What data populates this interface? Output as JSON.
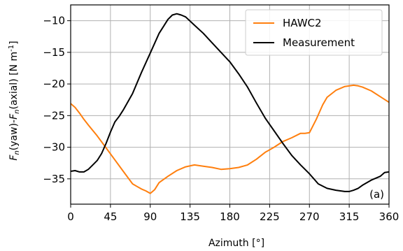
{
  "chart_data": {
    "type": "line",
    "xlabel": "Azimuth [°]",
    "ylabel": "Fn(yaw)-Fn(axial) [N m-1]",
    "xlim": [
      0,
      360
    ],
    "ylim": [
      -39,
      -7.5
    ],
    "xticks": [
      0,
      45,
      90,
      135,
      180,
      225,
      270,
      315,
      360
    ],
    "yticks": [
      -35,
      -30,
      -25,
      -20,
      -15,
      -10
    ],
    "grid": true,
    "legend_position": "top-right",
    "annotation": "(a)",
    "series": [
      {
        "name": "HAWC2",
        "color": "#ff7f0e",
        "x": [
          0,
          5,
          10,
          15,
          20,
          30,
          40,
          50,
          60,
          70,
          75,
          80,
          85,
          90,
          95,
          100,
          110,
          120,
          130,
          140,
          150,
          160,
          170,
          180,
          190,
          200,
          210,
          220,
          230,
          240,
          250,
          260,
          265,
          270,
          278,
          285,
          290,
          300,
          310,
          320,
          325,
          330,
          340,
          350,
          360
        ],
        "y": [
          -23.1,
          -23.7,
          -24.6,
          -25.6,
          -26.5,
          -28.2,
          -30.1,
          -32.0,
          -33.9,
          -35.8,
          -36.2,
          -36.6,
          -36.9,
          -37.3,
          -36.7,
          -35.6,
          -34.6,
          -33.7,
          -33.1,
          -32.8,
          -33.0,
          -33.2,
          -33.5,
          -33.4,
          -33.2,
          -32.8,
          -31.9,
          -30.8,
          -30.0,
          -29.1,
          -28.5,
          -27.8,
          -27.8,
          -27.7,
          -25.5,
          -23.3,
          -22.1,
          -21.0,
          -20.4,
          -20.2,
          -20.3,
          -20.5,
          -21.1,
          -22.0,
          -22.9
        ]
      },
      {
        "name": "Measurement",
        "color": "#000000",
        "x": [
          0,
          5,
          10,
          15,
          20,
          25,
          30,
          35,
          40,
          45,
          50,
          55,
          60,
          70,
          80,
          90,
          100,
          105,
          110,
          115,
          120,
          125,
          130,
          140,
          150,
          160,
          170,
          180,
          190,
          200,
          210,
          220,
          230,
          240,
          250,
          260,
          270,
          280,
          290,
          300,
          310,
          315,
          320,
          325,
          330,
          340,
          350,
          355,
          360
        ],
        "y": [
          -33.8,
          -33.7,
          -33.9,
          -33.9,
          -33.5,
          -32.8,
          -32.1,
          -31.0,
          -29.4,
          -27.6,
          -26.0,
          -25.1,
          -24.0,
          -21.5,
          -18.2,
          -15.1,
          -12.0,
          -10.9,
          -9.8,
          -9.1,
          -8.9,
          -9.1,
          -9.4,
          -10.7,
          -12.0,
          -13.5,
          -15.0,
          -16.5,
          -18.4,
          -20.5,
          -23.0,
          -25.4,
          -27.4,
          -29.4,
          -31.3,
          -32.8,
          -34.2,
          -35.8,
          -36.5,
          -36.8,
          -37.0,
          -37.0,
          -36.8,
          -36.5,
          -36.0,
          -35.2,
          -34.6,
          -34.0,
          -33.9
        ]
      }
    ]
  }
}
